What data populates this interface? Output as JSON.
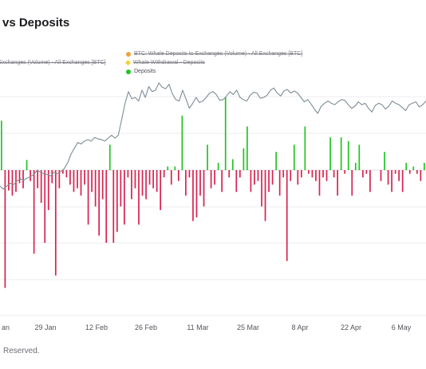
{
  "title": "vs Deposits",
  "footer": "Reserved.",
  "legend": [
    {
      "label": "BTC: Whale Deposits to Exchanges (Volume) - All Exchanges [BTC]",
      "color": "#f2a03a",
      "marker": "dot",
      "struck": true
    },
    {
      "label": "Exchanges (Volume) - All Exchanges [BTC]",
      "color": "#f2a03a",
      "marker": "none",
      "struck": true
    },
    {
      "label": "Whale Withdrawal - Deposits",
      "color": "#f2d13a",
      "marker": "diamond",
      "struck": true
    },
    {
      "label": "Deposits",
      "color": "#22c422",
      "marker": "dot",
      "struck": false
    }
  ],
  "chart_data": {
    "type": "bar",
    "x_tick_labels": [
      "an",
      "29 Jan",
      "12 Feb",
      "26 Feb",
      "11 Mar",
      "25 Mar",
      "8 Apr",
      "22 Apr",
      "6 May"
    ],
    "series": [
      {
        "name": "Deposits",
        "type": "bar",
        "colors": {
          "positive": "#22c422",
          "negative": "#d8224f"
        },
        "values": [
          68,
          -162,
          -28,
          -35,
          -30,
          -18,
          -25,
          14,
          -15,
          -115,
          -25,
          -45,
          -100,
          -55,
          -18,
          -145,
          -25,
          -5,
          -10,
          -20,
          -30,
          -25,
          -35,
          -20,
          -75,
          -30,
          -50,
          -90,
          -40,
          -100,
          35,
          -100,
          -85,
          -50,
          -75,
          -10,
          -40,
          -25,
          -75,
          -35,
          -40,
          -20,
          -25,
          -30,
          -55,
          -10,
          5,
          -20,
          5,
          -15,
          75,
          -35,
          -10,
          -70,
          -65,
          -35,
          -50,
          35,
          -25,
          -20,
          10,
          -30,
          100,
          -10,
          15,
          -30,
          -10,
          30,
          60,
          -30,
          -20,
          -15,
          -50,
          -70,
          -30,
          -20,
          25,
          -35,
          -10,
          -125,
          -15,
          35,
          -20,
          -10,
          60,
          -5,
          -10,
          -15,
          -35,
          -10,
          -15,
          45,
          -10,
          -35,
          45,
          -5,
          40,
          -35,
          10,
          35,
          -10,
          -5,
          -30,
          0,
          0,
          -15,
          25,
          -20,
          -30,
          -5,
          -15,
          -30,
          10,
          -5,
          5,
          -5,
          -15,
          10
        ]
      },
      {
        "name": "",
        "type": "line",
        "color": "#7e8d96",
        "values": [
          -22,
          -26,
          -22,
          -18,
          -20,
          -15,
          -12,
          -14,
          -11,
          -9,
          -6,
          0,
          -3,
          -5,
          -6,
          -8,
          -3,
          -5,
          -2,
          2,
          10,
          22,
          30,
          38,
          36,
          40,
          42,
          40,
          45,
          43,
          42,
          40,
          44,
          48,
          44,
          48,
          70,
          92,
          108,
          98,
          100,
          95,
          110,
          100,
          115,
          108,
          110,
          120,
          114,
          112,
          118,
          105,
          97,
          95,
          110,
          98,
          85,
          92,
          100,
          93,
          95,
          100,
          106,
          108,
          104,
          96,
          97,
          102,
          108,
          104,
          110,
          100,
          97,
          95,
          103,
          107,
          106,
          99,
          100,
          103,
          110,
          113,
          106,
          102,
          109,
          111,
          106,
          109,
          106,
          100,
          94,
          97,
          91,
          84,
          78,
          88,
          92,
          95,
          92,
          90,
          94,
          97,
          96,
          90,
          85,
          88,
          94,
          90,
          92,
          85,
          80,
          89,
          92,
          90,
          84,
          88,
          95,
          92,
          90,
          86,
          82,
          90,
          92,
          94,
          87,
          90,
          95
        ]
      }
    ],
    "grid": true,
    "legend_position": "top-center"
  }
}
